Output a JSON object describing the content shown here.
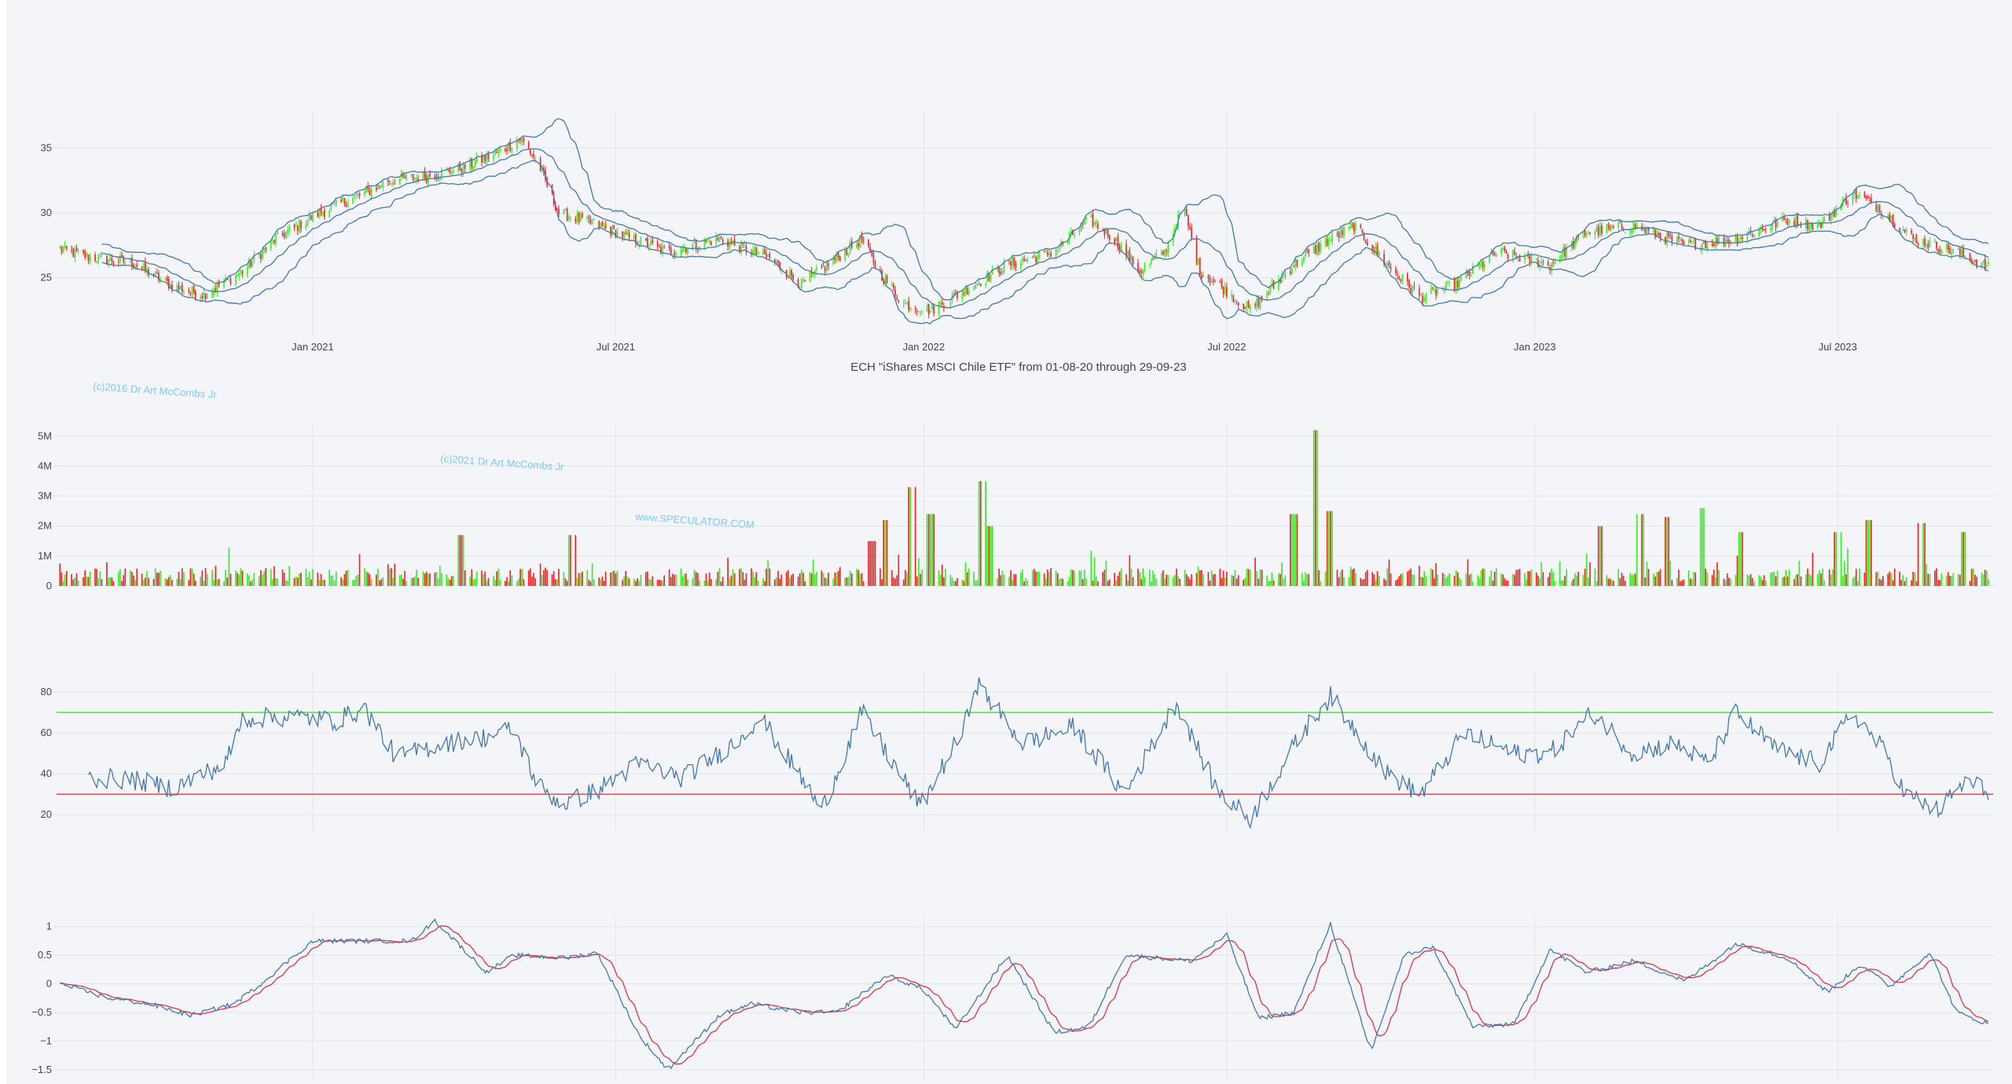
{
  "title": "ECH \"iShares MSCI Chile ETF\" from 01-08-20 through 29-09-23",
  "watermarks": [
    "(c)2016 Dr Art McCombs Jr",
    "(c)2021 Dr Art McCombs Jr",
    "www.SPECULATOR.COM"
  ],
  "colors": {
    "up": "#33ee22",
    "down": "#ee2222",
    "line": "#4477aa",
    "signal": "#dd3344",
    "rsi_upper": "#55dd44",
    "rsi_lower": "#ee4444",
    "grid": "#e2e4ec"
  },
  "chart_data": [
    {
      "type": "candlestick",
      "panel": "price",
      "indicators": [
        "bollinger-bands"
      ],
      "x_tick_labels": [
        "Jan 2021",
        "Jul 2021",
        "Jan 2022",
        "Jul 2022",
        "Jan 2023",
        "Jul 2023"
      ],
      "x_tick_dates": [
        "2021-01-01",
        "2021-07-01",
        "2022-01-01",
        "2022-07-01",
        "2023-01-01",
        "2023-07-01"
      ],
      "x_range": [
        "2020-08-01",
        "2023-09-29"
      ],
      "y_ticks": [
        25,
        30,
        35
      ],
      "y_tick_labels": [
        "25",
        "30",
        "35"
      ],
      "ylim": [
        20.5,
        37.8
      ],
      "close_keypoints": [
        [
          "2020-08-03",
          27.2
        ],
        [
          "2020-08-20",
          26.6
        ],
        [
          "2020-09-15",
          26.2
        ],
        [
          "2020-10-10",
          24.3
        ],
        [
          "2020-10-28",
          23.7
        ],
        [
          "2020-11-20",
          25.5
        ],
        [
          "2020-12-10",
          28.0
        ],
        [
          "2021-01-05",
          30.0
        ],
        [
          "2021-02-01",
          31.5
        ],
        [
          "2021-02-15",
          32.5
        ],
        [
          "2021-03-10",
          32.8
        ],
        [
          "2021-04-01",
          33.5
        ],
        [
          "2021-04-20",
          34.5
        ],
        [
          "2021-05-05",
          35.7
        ],
        [
          "2021-05-15",
          34.0
        ],
        [
          "2021-05-28",
          30.0
        ],
        [
          "2021-06-10",
          29.5
        ],
        [
          "2021-07-01",
          28.5
        ],
        [
          "2021-08-01",
          27.0
        ],
        [
          "2021-09-01",
          28.0
        ],
        [
          "2021-10-01",
          26.5
        ],
        [
          "2021-10-20",
          24.5
        ],
        [
          "2021-11-10",
          26.5
        ],
        [
          "2021-11-25",
          28.0
        ],
        [
          "2021-12-05",
          25.5
        ],
        [
          "2021-12-20",
          23.0
        ],
        [
          "2022-01-05",
          22.5
        ],
        [
          "2022-01-25",
          24.0
        ],
        [
          "2022-02-20",
          26.0
        ],
        [
          "2022-03-20",
          27.0
        ],
        [
          "2022-04-10",
          29.5
        ],
        [
          "2022-04-25",
          28.0
        ],
        [
          "2022-05-10",
          25.5
        ],
        [
          "2022-05-25",
          27.0
        ],
        [
          "2022-06-05",
          30.5
        ],
        [
          "2022-06-15",
          25.5
        ],
        [
          "2022-07-01",
          24.0
        ],
        [
          "2022-07-15",
          22.5
        ],
        [
          "2022-08-10",
          26.0
        ],
        [
          "2022-09-01",
          28.0
        ],
        [
          "2022-09-15",
          29.0
        ],
        [
          "2022-10-05",
          26.0
        ],
        [
          "2022-10-25",
          23.5
        ],
        [
          "2022-11-15",
          24.5
        ],
        [
          "2022-12-10",
          27.0
        ],
        [
          "2023-01-10",
          26.0
        ],
        [
          "2023-02-01",
          28.5
        ],
        [
          "2023-03-01",
          29.0
        ],
        [
          "2023-04-01",
          27.5
        ],
        [
          "2023-05-01",
          28.0
        ],
        [
          "2023-06-01",
          29.5
        ],
        [
          "2023-06-20",
          29.0
        ],
        [
          "2023-07-10",
          31.5
        ],
        [
          "2023-07-25",
          30.5
        ],
        [
          "2023-08-15",
          28.0
        ],
        [
          "2023-09-10",
          27.0
        ],
        [
          "2023-09-29",
          25.8
        ]
      ]
    },
    {
      "type": "bar",
      "panel": "volume",
      "y_ticks": [
        0,
        1000000,
        2000000,
        3000000,
        4000000,
        5000000
      ],
      "y_tick_labels": [
        "0",
        "1M",
        "2M",
        "3M",
        "4M",
        "5M"
      ],
      "ylim": [
        0,
        5400000
      ],
      "spikes": [
        [
          "2021-03-30",
          1700000
        ],
        [
          "2021-06-05",
          1700000
        ],
        [
          "2021-12-01",
          1500000
        ],
        [
          "2021-12-10",
          2200000
        ],
        [
          "2021-12-25",
          3300000
        ],
        [
          "2022-01-05",
          2400000
        ],
        [
          "2022-02-05",
          3500000
        ],
        [
          "2022-02-10",
          2000000
        ],
        [
          "2022-08-10",
          2400000
        ],
        [
          "2022-08-22",
          5200000
        ],
        [
          "2022-09-01",
          2500000
        ],
        [
          "2023-02-10",
          2000000
        ],
        [
          "2023-03-05",
          2400000
        ],
        [
          "2023-03-20",
          2300000
        ],
        [
          "2023-04-10",
          2600000
        ],
        [
          "2023-05-05",
          1800000
        ],
        [
          "2023-07-01",
          1800000
        ],
        [
          "2023-07-20",
          2200000
        ],
        [
          "2023-08-20",
          2100000
        ],
        [
          "2023-09-15",
          1800000
        ]
      ]
    },
    {
      "type": "line",
      "panel": "rsi",
      "y_ticks": [
        20,
        40,
        60,
        80
      ],
      "y_tick_labels": [
        "20",
        "40",
        "60",
        "80"
      ],
      "ylim": [
        12,
        90
      ],
      "upper_threshold": 70,
      "lower_threshold": 30,
      "keypoints": [
        [
          "2020-08-20",
          38
        ],
        [
          "2020-09-15",
          37
        ],
        [
          "2020-10-10",
          33
        ],
        [
          "2020-11-10",
          45
        ],
        [
          "2020-11-20",
          67
        ],
        [
          "2020-12-20",
          68
        ],
        [
          "2021-01-15",
          66
        ],
        [
          "2021-02-01",
          72
        ],
        [
          "2021-02-20",
          48
        ],
        [
          "2021-03-20",
          55
        ],
        [
          "2021-04-15",
          58
        ],
        [
          "2021-05-01",
          62
        ],
        [
          "2021-05-15",
          35
        ],
        [
          "2021-05-30",
          25
        ],
        [
          "2021-06-20",
          32
        ],
        [
          "2021-07-15",
          45
        ],
        [
          "2021-08-10",
          38
        ],
        [
          "2021-09-10",
          55
        ],
        [
          "2021-09-25",
          68
        ],
        [
          "2021-10-20",
          38
        ],
        [
          "2021-11-01",
          22
        ],
        [
          "2021-11-25",
          70
        ],
        [
          "2021-12-10",
          50
        ],
        [
          "2021-12-30",
          24
        ],
        [
          "2022-01-25",
          62
        ],
        [
          "2022-02-01",
          85
        ],
        [
          "2022-03-01",
          55
        ],
        [
          "2022-04-01",
          63
        ],
        [
          "2022-05-01",
          30
        ],
        [
          "2022-06-01",
          75
        ],
        [
          "2022-06-25",
          32
        ],
        [
          "2022-07-15",
          18
        ],
        [
          "2022-08-15",
          60
        ],
        [
          "2022-09-01",
          78
        ],
        [
          "2022-10-05",
          40
        ],
        [
          "2022-10-25",
          30
        ],
        [
          "2022-11-20",
          60
        ],
        [
          "2022-12-20",
          50
        ],
        [
          "2023-01-10",
          50
        ],
        [
          "2023-02-05",
          70
        ],
        [
          "2023-03-01",
          50
        ],
        [
          "2023-03-25",
          55
        ],
        [
          "2023-04-15",
          45
        ],
        [
          "2023-05-01",
          70
        ],
        [
          "2023-05-25",
          52
        ],
        [
          "2023-06-20",
          45
        ],
        [
          "2023-07-10",
          70
        ],
        [
          "2023-07-30",
          50
        ],
        [
          "2023-08-10",
          30
        ],
        [
          "2023-08-30",
          22
        ],
        [
          "2023-09-15",
          36
        ],
        [
          "2023-09-29",
          32
        ]
      ]
    },
    {
      "type": "line",
      "panel": "oscillator",
      "y_ticks": [
        -1.5,
        -1,
        -0.5,
        0,
        0.5,
        1
      ],
      "y_tick_labels": [
        "−1.5",
        "−1",
        "−0.5",
        "0",
        "0.5",
        "1"
      ],
      "ylim": [
        -1.68,
        1.2
      ],
      "keypoints": [
        [
          "2020-08-03",
          0.0
        ],
        [
          "2020-09-01",
          -0.25
        ],
        [
          "2020-09-25",
          -0.35
        ],
        [
          "2020-10-20",
          -0.55
        ],
        [
          "2020-11-15",
          -0.35
        ],
        [
          "2020-12-01",
          0.0
        ],
        [
          "2021-01-01",
          0.75
        ],
        [
          "2021-02-01",
          0.75
        ],
        [
          "2021-03-01",
          0.75
        ],
        [
          "2021-03-15",
          1.1
        ],
        [
          "2021-04-15",
          0.2
        ],
        [
          "2021-05-01",
          0.5
        ],
        [
          "2021-06-01",
          0.45
        ],
        [
          "2021-06-20",
          0.55
        ],
        [
          "2021-07-15",
          -0.9
        ],
        [
          "2021-08-01",
          -1.5
        ],
        [
          "2021-09-01",
          -0.55
        ],
        [
          "2021-09-20",
          -0.35
        ],
        [
          "2021-10-20",
          -0.5
        ],
        [
          "2021-11-10",
          -0.5
        ],
        [
          "2021-12-10",
          0.15
        ],
        [
          "2022-01-01",
          -0.1
        ],
        [
          "2022-01-20",
          -0.8
        ],
        [
          "2022-02-20",
          0.5
        ],
        [
          "2022-03-20",
          -0.85
        ],
        [
          "2022-04-10",
          -0.75
        ],
        [
          "2022-05-01",
          0.5
        ],
        [
          "2022-06-10",
          0.4
        ],
        [
          "2022-07-01",
          0.85
        ],
        [
          "2022-07-20",
          -0.6
        ],
        [
          "2022-08-10",
          -0.5
        ],
        [
          "2022-09-01",
          1.05
        ],
        [
          "2022-09-25",
          -1.2
        ],
        [
          "2022-10-15",
          0.5
        ],
        [
          "2022-11-01",
          0.65
        ],
        [
          "2022-11-25",
          -0.75
        ],
        [
          "2022-12-20",
          -0.7
        ],
        [
          "2023-01-10",
          0.6
        ],
        [
          "2023-02-01",
          0.2
        ],
        [
          "2023-03-01",
          0.4
        ],
        [
          "2023-04-01",
          0.05
        ],
        [
          "2023-05-01",
          0.7
        ],
        [
          "2023-06-01",
          0.45
        ],
        [
          "2023-06-25",
          -0.15
        ],
        [
          "2023-07-15",
          0.35
        ],
        [
          "2023-08-01",
          -0.05
        ],
        [
          "2023-08-25",
          0.55
        ],
        [
          "2023-09-10",
          -0.5
        ],
        [
          "2023-09-29",
          -0.7
        ]
      ]
    }
  ]
}
